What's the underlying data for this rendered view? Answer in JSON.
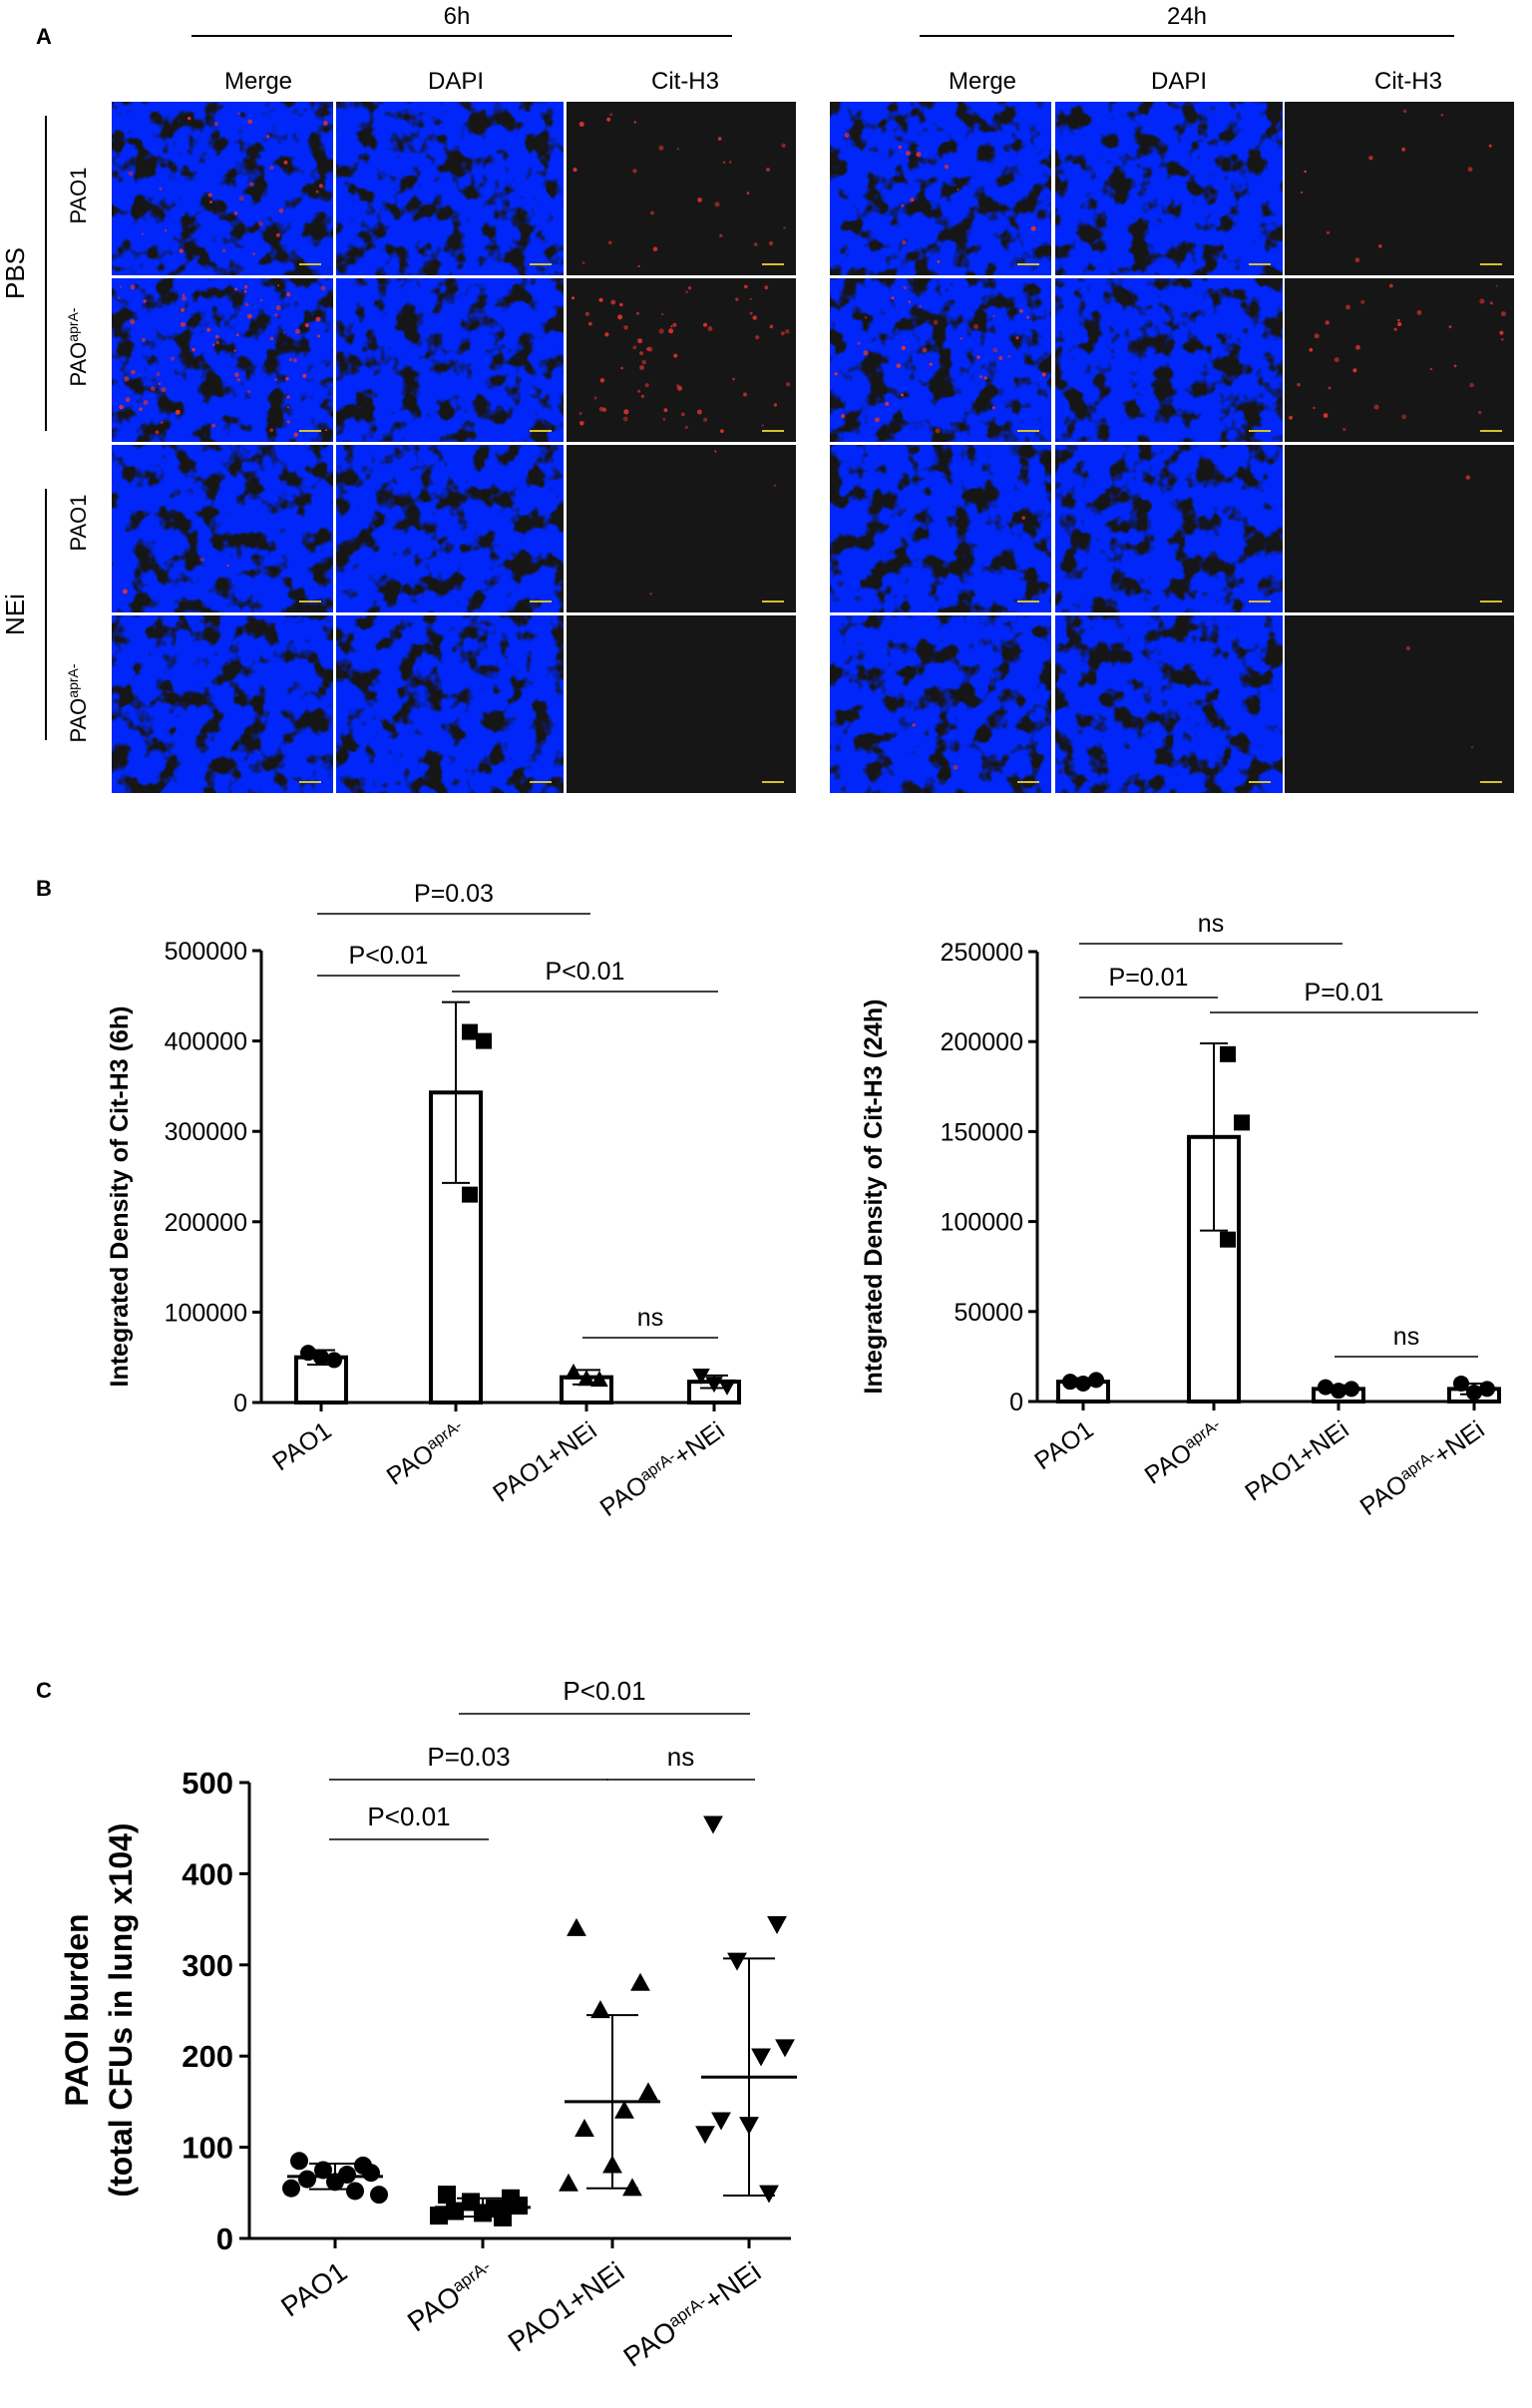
{
  "colors": {
    "micro_background": "#161616",
    "dapi_blue": "#2436d8",
    "cit_red": "#e0322c",
    "scale_bar": "#d4c22a",
    "ink": "#000000"
  },
  "panel_a": {
    "letter": "A",
    "time_groups": [
      "6h",
      "24h"
    ],
    "column_labels": [
      "Merge",
      "DAPI",
      "Cit-H3",
      "Merge",
      "DAPI",
      "Cit-H3"
    ],
    "treatment_labels": [
      "PBS",
      "NEi"
    ],
    "strain_labels": [
      {
        "base": "PAO1",
        "sup": ""
      },
      {
        "base": "PAO",
        "sup": "aprA-"
      },
      {
        "base": "PAO1",
        "sup": ""
      },
      {
        "base": "PAO",
        "sup": "aprA-"
      }
    ],
    "cit_signal_level": [
      [
        0.35,
        0.15
      ],
      [
        0.9,
        0.45
      ],
      [
        0.04,
        0.02
      ],
      [
        0.0,
        0.03
      ]
    ]
  },
  "panel_b": {
    "letter": "B",
    "category_labels": [
      {
        "base": "PAO1",
        "sup": "",
        "suffix": ""
      },
      {
        "base": "PAO",
        "sup": "aprA-",
        "suffix": ""
      },
      {
        "base": "PAO1+NEi",
        "sup": "",
        "suffix": ""
      },
      {
        "base": "PAO",
        "sup": "aprA-",
        "suffix": "+NEi"
      }
    ]
  },
  "panel_c": {
    "letter": "C"
  },
  "chart_data": [
    {
      "type": "bar",
      "categories": [
        "PAO1",
        "PAOaprA-",
        "PAO1+NEi",
        "PAOaprA-+NEi"
      ],
      "ylabel": "Integrated Density of Cit-H3 (6h)",
      "ylim": [
        0,
        500000
      ],
      "yticks": [
        0,
        100000,
        200000,
        300000,
        400000,
        500000
      ],
      "ytick_labels": [
        "0",
        "100000",
        "200000",
        "300000",
        "400000",
        "500000"
      ],
      "values": [
        50000,
        343000,
        28000,
        23000
      ],
      "errors": [
        8000,
        100000,
        8000,
        7000
      ],
      "points": [
        [
          55000,
          47000,
          50000
        ],
        [
          410000,
          400000,
          230000
        ],
        [
          33000,
          25000,
          26000
        ],
        [
          30000,
          18000,
          21000
        ]
      ],
      "markers": [
        "circle",
        "square",
        "triangle-up",
        "triangle-down"
      ],
      "comparisons": [
        {
          "from": 0,
          "to": 1,
          "label": "P<0.01"
        },
        {
          "from": 0,
          "to": 2,
          "label": "P=0.03"
        },
        {
          "from": 1,
          "to": 3,
          "label": "P<0.01"
        },
        {
          "from": 2,
          "to": 3,
          "label": "ns"
        }
      ]
    },
    {
      "type": "bar",
      "categories": [
        "PAO1",
        "PAOaprA-",
        "PAO1+NEi",
        "PAOaprA-+NEi"
      ],
      "ylabel": "Integrated Density of Cit-H3 (24h)",
      "ylim": [
        0,
        250000
      ],
      "yticks": [
        0,
        50000,
        100000,
        150000,
        200000,
        250000
      ],
      "ytick_labels": [
        "0",
        "50000",
        "100000",
        "150000",
        "200000",
        "250000"
      ],
      "values": [
        11000,
        147000,
        7000,
        7000
      ],
      "errors": [
        2000,
        52000,
        2000,
        3000
      ],
      "points": [
        [
          11000,
          12000,
          10000
        ],
        [
          193000,
          155000,
          90000
        ],
        [
          8000,
          7000,
          6000
        ],
        [
          10000,
          7000,
          5000
        ]
      ],
      "markers": [
        "circle",
        "square",
        "circle",
        "circle"
      ],
      "comparisons": [
        {
          "from": 0,
          "to": 1,
          "label": "P=0.01"
        },
        {
          "from": 0,
          "to": 2,
          "label": "ns"
        },
        {
          "from": 1,
          "to": 3,
          "label": "P=0.01"
        },
        {
          "from": 2,
          "to": 3,
          "label": "ns"
        }
      ]
    },
    {
      "type": "scatter",
      "categories": [
        "PAO1",
        "PAOaprA-",
        "PAO1+NEi",
        "PAOaprA-+NEi"
      ],
      "ylabel": [
        "PAOI burden",
        "(total CFUs in lung x104)"
      ],
      "ylim": [
        0,
        500
      ],
      "yticks": [
        0,
        100,
        200,
        300,
        400,
        500
      ],
      "ytick_labels": [
        "0",
        "100",
        "200",
        "300",
        "400",
        "500"
      ],
      "means": [
        68,
        34,
        150,
        177
      ],
      "sd": [
        14,
        10,
        95,
        130
      ],
      "points": [
        [
          85,
          80,
          75,
          72,
          70,
          65,
          62,
          55,
          52,
          48
        ],
        [
          48,
          44,
          40,
          36,
          33,
          30,
          28,
          25,
          23
        ],
        [
          340,
          280,
          250,
          160,
          140,
          120,
          80,
          60,
          55
        ],
        [
          455,
          345,
          305,
          210,
          200,
          130,
          125,
          115,
          50
        ]
      ],
      "markers": [
        "circle",
        "square",
        "triangle-up",
        "triangle-down"
      ],
      "comparisons": [
        {
          "from": 0,
          "to": 1,
          "label": "P<0.01"
        },
        {
          "from": 0,
          "to": 2,
          "label": "P=0.03"
        },
        {
          "from": 2,
          "to": 3,
          "label": "ns"
        },
        {
          "from": 1,
          "to": 3,
          "label": "P<0.01"
        }
      ]
    }
  ]
}
